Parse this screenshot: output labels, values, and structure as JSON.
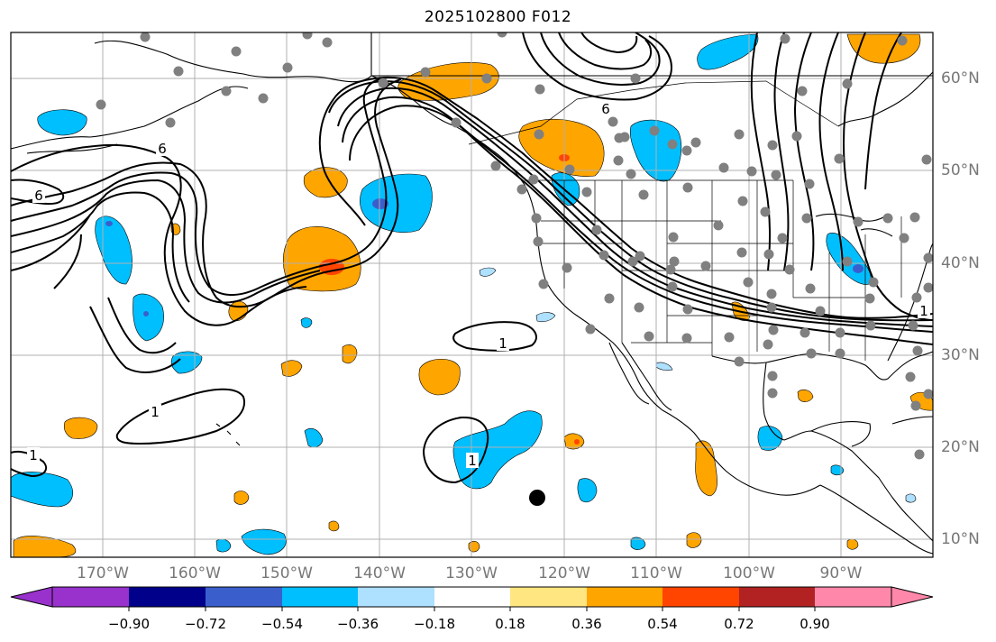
{
  "title": "2025102800 F012",
  "lon_labels": [
    "170°W",
    "160°W",
    "150°W",
    "140°W",
    "130°W",
    "120°W",
    "110°W",
    "100°W",
    "90°W"
  ],
  "lat_labels": [
    "60°N",
    "50°N",
    "40°N",
    "30°N",
    "20°N",
    "10°N"
  ],
  "colorbar": {
    "ticks": [
      "−0.90",
      "−0.72",
      "−0.54",
      "−0.36",
      "−0.18",
      "0.18",
      "0.36",
      "0.54",
      "0.72",
      "0.90"
    ],
    "colors": [
      "#9932cc",
      "#00008b",
      "#3a5fcd",
      "#00bfff",
      "#aee0ff",
      "#ffffff",
      "#ffe680",
      "#ffa500",
      "#ff4500",
      "#b22222",
      "#ff88aa"
    ]
  },
  "contour_labels": [
    "6",
    "6",
    "6",
    "1",
    "1",
    "1",
    "1",
    "1"
  ],
  "colors": {
    "station": "#808080",
    "marker": "#000000",
    "grid": "#b0b0b0"
  },
  "stations_count_note": "gray circles depict observation sites"
}
